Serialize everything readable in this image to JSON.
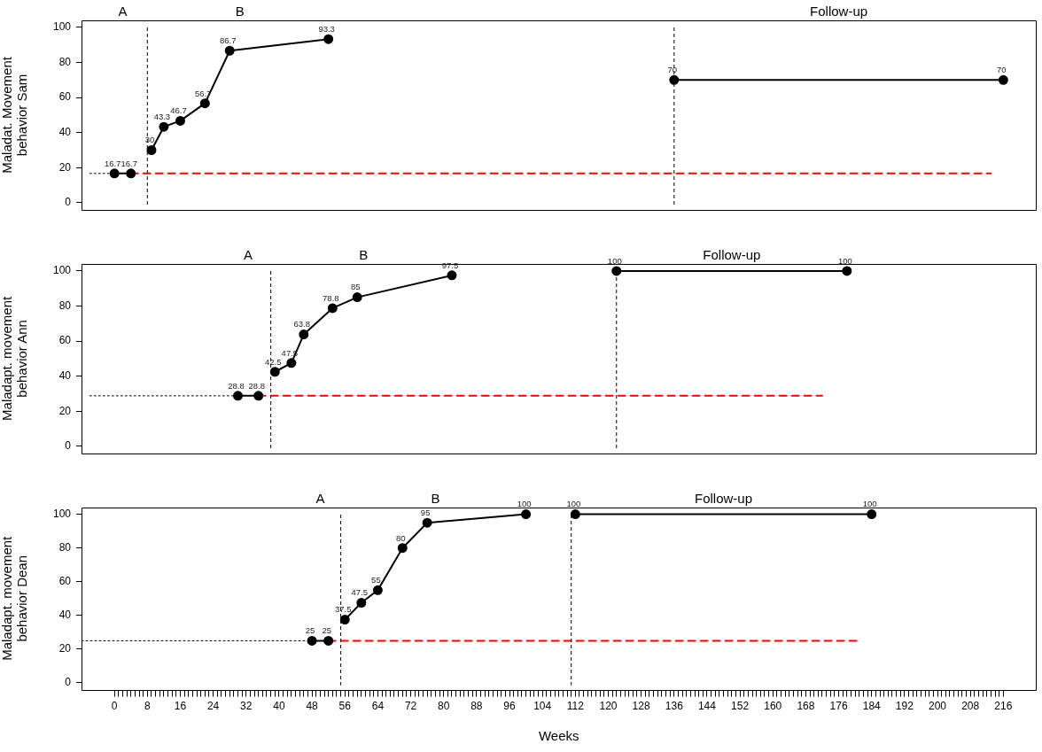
{
  "chart_data": [
    {
      "type": "line",
      "ylabel": "Maladat. Movement\nbehavior Sam",
      "xlim": [
        -8,
        224
      ],
      "ylim": [
        -4,
        104
      ],
      "yticks": [
        0,
        20,
        40,
        60,
        80,
        100
      ],
      "tick_labels": "y",
      "series": [
        {
          "x": [
            0,
            4
          ],
          "values": [
            16.7,
            16.7
          ],
          "color": "#000000",
          "marker": "circle",
          "line_style": "solid",
          "data_labels": true
        },
        {
          "x": [
            9,
            12,
            16,
            22,
            28,
            52
          ],
          "values": [
            30,
            43.3,
            46.7,
            56.7,
            86.7,
            93.3
          ],
          "color": "#000000",
          "marker": "circle",
          "line_style": "solid",
          "data_labels": true
        },
        {
          "x": [
            136,
            216
          ],
          "values": [
            70,
            70
          ],
          "color": "#000000",
          "marker": "circle",
          "line_style": "solid",
          "data_labels": true
        },
        {
          "x": [
            -6,
            0
          ],
          "values": [
            16.7,
            16.7
          ],
          "color": "#000000",
          "marker": "none",
          "line_style": "dotted"
        },
        {
          "x": [
            4,
            213
          ],
          "values": [
            16.7,
            16.7
          ],
          "color": "#ff0000",
          "marker": "none",
          "line_style": "dashed"
        }
      ],
      "ref_lines": [
        {
          "axis": "x",
          "value": 8,
          "color": "#000000",
          "line_style": "dashed"
        },
        {
          "axis": "x",
          "value": 136,
          "color": "#000000",
          "line_style": "dashed"
        }
      ],
      "annotations": [
        "A",
        "B",
        "Follow-up"
      ]
    },
    {
      "type": "line",
      "ylabel": "Maladapt. movement\nbehavior Ann",
      "xlim": [
        -8,
        224
      ],
      "ylim": [
        -4,
        104
      ],
      "yticks": [
        0,
        20,
        40,
        60,
        80,
        100
      ],
      "tick_labels": "y",
      "series": [
        {
          "x": [
            30,
            35
          ],
          "values": [
            28.8,
            28.8
          ],
          "color": "#000000",
          "marker": "circle",
          "line_style": "solid",
          "data_labels": true
        },
        {
          "x": [
            39,
            43,
            46,
            53,
            59,
            82
          ],
          "values": [
            42.5,
            47.5,
            63.8,
            78.8,
            85,
            97.5
          ],
          "color": "#000000",
          "marker": "circle",
          "line_style": "solid",
          "data_labels": true
        },
        {
          "x": [
            122,
            178
          ],
          "values": [
            100,
            100
          ],
          "color": "#000000",
          "marker": "circle",
          "line_style": "solid",
          "data_labels": true
        },
        {
          "x": [
            -6,
            30
          ],
          "values": [
            28.8,
            28.8
          ],
          "color": "#000000",
          "marker": "none",
          "line_style": "dotted"
        },
        {
          "x": [
            35,
            172
          ],
          "values": [
            28.8,
            28.8
          ],
          "color": "#ff0000",
          "marker": "none",
          "line_style": "dashed"
        }
      ],
      "ref_lines": [
        {
          "axis": "x",
          "value": 38,
          "color": "#000000",
          "line_style": "dashed"
        },
        {
          "axis": "x",
          "value": 122,
          "color": "#000000",
          "line_style": "dashed"
        }
      ],
      "annotations": [
        "A",
        "B",
        "Follow-up"
      ]
    },
    {
      "type": "line",
      "ylabel": "Maladapt. movement\nbehavior Dean",
      "xlabel": "Weeks",
      "xlim": [
        -8,
        224
      ],
      "ylim": [
        -4,
        104
      ],
      "yticks": [
        0,
        20,
        40,
        60,
        80,
        100
      ],
      "xticks": [
        0,
        {
          "value": 1,
          "label": null
        },
        {
          "value": 2,
          "label": null
        },
        {
          "value": 3,
          "label": null
        },
        {
          "value": 4,
          "label": null
        },
        {
          "value": 5,
          "label": null
        },
        {
          "value": 6,
          "label": null
        },
        {
          "value": 7,
          "label": null
        },
        8,
        {
          "value": 9,
          "label": null
        },
        {
          "value": 10,
          "label": null
        },
        {
          "value": 11,
          "label": null
        },
        {
          "value": 12,
          "label": null
        },
        {
          "value": 13,
          "label": null
        },
        {
          "value": 14,
          "label": null
        },
        {
          "value": 15,
          "label": null
        },
        16,
        {
          "value": 17,
          "label": null
        },
        {
          "value": 18,
          "label": null
        },
        {
          "value": 19,
          "label": null
        },
        {
          "value": 20,
          "label": null
        },
        {
          "value": 21,
          "label": null
        },
        {
          "value": 22,
          "label": null
        },
        {
          "value": 23,
          "label": null
        },
        24,
        {
          "value": 25,
          "label": null
        },
        {
          "value": 26,
          "label": null
        },
        {
          "value": 27,
          "label": null
        },
        {
          "value": 28,
          "label": null
        },
        {
          "value": 29,
          "label": null
        },
        {
          "value": 30,
          "label": null
        },
        {
          "value": 31,
          "label": null
        },
        32,
        {
          "value": 33,
          "label": null
        },
        {
          "value": 34,
          "label": null
        },
        {
          "value": 35,
          "label": null
        },
        {
          "value": 36,
          "label": null
        },
        {
          "value": 37,
          "label": null
        },
        {
          "value": 38,
          "label": null
        },
        {
          "value": 39,
          "label": null
        },
        40,
        {
          "value": 41,
          "label": null
        },
        {
          "value": 42,
          "label": null
        },
        {
          "value": 43,
          "label": null
        },
        {
          "value": 44,
          "label": null
        },
        {
          "value": 45,
          "label": null
        },
        {
          "value": 46,
          "label": null
        },
        {
          "value": 47,
          "label": null
        },
        48,
        {
          "value": 49,
          "label": null
        },
        {
          "value": 50,
          "label": null
        },
        {
          "value": 51,
          "label": null
        },
        {
          "value": 52,
          "label": null
        },
        {
          "value": 53,
          "label": null
        },
        {
          "value": 54,
          "label": null
        },
        {
          "value": 55,
          "label": null
        },
        56,
        {
          "value": 57,
          "label": null
        },
        {
          "value": 58,
          "label": null
        },
        {
          "value": 59,
          "label": null
        },
        {
          "value": 60,
          "label": null
        },
        {
          "value": 61,
          "label": null
        },
        {
          "value": 62,
          "label": null
        },
        {
          "value": 63,
          "label": null
        },
        64,
        {
          "value": 65,
          "label": null
        },
        {
          "value": 66,
          "label": null
        },
        {
          "value": 67,
          "label": null
        },
        {
          "value": 68,
          "label": null
        },
        {
          "value": 69,
          "label": null
        },
        {
          "value": 70,
          "label": null
        },
        {
          "value": 71,
          "label": null
        },
        72,
        {
          "value": 73,
          "label": null
        },
        {
          "value": 74,
          "label": null
        },
        {
          "value": 75,
          "label": null
        },
        {
          "value": 76,
          "label": null
        },
        {
          "value": 77,
          "label": null
        },
        {
          "value": 78,
          "label": null
        },
        {
          "value": 79,
          "label": null
        },
        80,
        {
          "value": 81,
          "label": null
        },
        {
          "value": 82,
          "label": null
        },
        {
          "value": 83,
          "label": null
        },
        {
          "value": 84,
          "label": null
        },
        {
          "value": 85,
          "label": null
        },
        {
          "value": 86,
          "label": null
        },
        {
          "value": 87,
          "label": null
        },
        88,
        {
          "value": 89,
          "label": null
        },
        {
          "value": 90,
          "label": null
        },
        {
          "value": 91,
          "label": null
        },
        {
          "value": 92,
          "label": null
        },
        {
          "value": 93,
          "label": null
        },
        {
          "value": 94,
          "label": null
        },
        {
          "value": 95,
          "label": null
        },
        96,
        {
          "value": 97,
          "label": null
        },
        {
          "value": 98,
          "label": null
        },
        {
          "value": 99,
          "label": null
        },
        {
          "value": 100,
          "label": null
        },
        {
          "value": 101,
          "label": null
        },
        {
          "value": 102,
          "label": null
        },
        {
          "value": 103,
          "label": null
        },
        104,
        {
          "value": 105,
          "label": null
        },
        {
          "value": 106,
          "label": null
        },
        {
          "value": 107,
          "label": null
        },
        {
          "value": 108,
          "label": null
        },
        {
          "value": 109,
          "label": null
        },
        {
          "value": 110,
          "label": null
        },
        {
          "value": 111,
          "label": null
        },
        112,
        {
          "value": 113,
          "label": null
        },
        {
          "value": 114,
          "label": null
        },
        {
          "value": 115,
          "label": null
        },
        {
          "value": 116,
          "label": null
        },
        {
          "value": 117,
          "label": null
        },
        {
          "value": 118,
          "label": null
        },
        {
          "value": 119,
          "label": null
        },
        120,
        {
          "value": 121,
          "label": null
        },
        {
          "value": 122,
          "label": null
        },
        {
          "value": 123,
          "label": null
        },
        {
          "value": 124,
          "label": null
        },
        {
          "value": 125,
          "label": null
        },
        {
          "value": 126,
          "label": null
        },
        {
          "value": 127,
          "label": null
        },
        128,
        {
          "value": 129,
          "label": null
        },
        {
          "value": 130,
          "label": null
        },
        {
          "value": 131,
          "label": null
        },
        {
          "value": 132,
          "label": null
        },
        {
          "value": 133,
          "label": null
        },
        {
          "value": 134,
          "label": null
        },
        {
          "value": 135,
          "label": null
        },
        136,
        {
          "value": 137,
          "label": null
        },
        {
          "value": 138,
          "label": null
        },
        {
          "value": 139,
          "label": null
        },
        {
          "value": 140,
          "label": null
        },
        {
          "value": 141,
          "label": null
        },
        {
          "value": 142,
          "label": null
        },
        {
          "value": 143,
          "label": null
        },
        144,
        {
          "value": 145,
          "label": null
        },
        {
          "value": 146,
          "label": null
        },
        {
          "value": 147,
          "label": null
        },
        {
          "value": 148,
          "label": null
        },
        {
          "value": 149,
          "label": null
        },
        {
          "value": 150,
          "label": null
        },
        {
          "value": 151,
          "label": null
        },
        152,
        {
          "value": 153,
          "label": null
        },
        {
          "value": 154,
          "label": null
        },
        {
          "value": 155,
          "label": null
        },
        {
          "value": 156,
          "label": null
        },
        {
          "value": 157,
          "label": null
        },
        {
          "value": 158,
          "label": null
        },
        {
          "value": 159,
          "label": null
        },
        160,
        {
          "value": 161,
          "label": null
        },
        {
          "value": 162,
          "label": null
        },
        {
          "value": 163,
          "label": null
        },
        {
          "value": 164,
          "label": null
        },
        {
          "value": 165,
          "label": null
        },
        {
          "value": 166,
          "label": null
        },
        {
          "value": 167,
          "label": null
        },
        168,
        {
          "value": 169,
          "label": null
        },
        {
          "value": 170,
          "label": null
        },
        {
          "value": 171,
          "label": null
        },
        {
          "value": 172,
          "label": null
        },
        {
          "value": 173,
          "label": null
        },
        {
          "value": 174,
          "label": null
        },
        {
          "value": 175,
          "label": null
        },
        176,
        {
          "value": 177,
          "label": null
        },
        {
          "value": 178,
          "label": null
        },
        {
          "value": 179,
          "label": null
        },
        {
          "value": 180,
          "label": null
        },
        {
          "value": 181,
          "label": null
        },
        {
          "value": 182,
          "label": null
        },
        {
          "value": 183,
          "label": null
        },
        184,
        {
          "value": 185,
          "label": null
        },
        {
          "value": 186,
          "label": null
        },
        {
          "value": 187,
          "label": null
        },
        {
          "value": 188,
          "label": null
        },
        {
          "value": 189,
          "label": null
        },
        {
          "value": 190,
          "label": null
        },
        {
          "value": 191,
          "label": null
        },
        192,
        {
          "value": 193,
          "label": null
        },
        {
          "value": 194,
          "label": null
        },
        {
          "value": 195,
          "label": null
        },
        {
          "value": 196,
          "label": null
        },
        {
          "value": 197,
          "label": null
        },
        {
          "value": 198,
          "label": null
        },
        {
          "value": 199,
          "label": null
        },
        200,
        {
          "value": 201,
          "label": null
        },
        {
          "value": 202,
          "label": null
        },
        {
          "value": 203,
          "label": null
        },
        {
          "value": 204,
          "label": null
        },
        {
          "value": 205,
          "label": null
        },
        {
          "value": 206,
          "label": null
        },
        {
          "value": 207,
          "label": null
        },
        208,
        {
          "value": 209,
          "label": null
        },
        {
          "value": 210,
          "label": null
        },
        {
          "value": 211,
          "label": null
        },
        {
          "value": 212,
          "label": null
        },
        {
          "value": 213,
          "label": null
        },
        {
          "value": 214,
          "label": null
        },
        {
          "value": 215,
          "label": null
        },
        216
      ],
      "series": [
        {
          "x": [
            48,
            52
          ],
          "values": [
            25,
            25
          ],
          "color": "#000000",
          "marker": "circle",
          "line_style": "solid",
          "data_labels": true
        },
        {
          "x": [
            56,
            60,
            64,
            70,
            76,
            100
          ],
          "values": [
            37.5,
            47.5,
            55,
            80,
            95,
            100
          ],
          "color": "#000000",
          "marker": "circle",
          "line_style": "solid",
          "data_labels": true
        },
        {
          "x": [
            112,
            184
          ],
          "values": [
            100,
            100
          ],
          "color": "#000000",
          "marker": "circle",
          "line_style": "solid",
          "data_labels": true
        },
        {
          "x": [
            -8,
            48
          ],
          "values": [
            25,
            25
          ],
          "color": "#000000",
          "marker": "none",
          "line_style": "dotted"
        },
        {
          "x": [
            52,
            181
          ],
          "values": [
            25,
            25
          ],
          "color": "#ff0000",
          "marker": "none",
          "line_style": "dashed"
        }
      ],
      "ref_lines": [
        {
          "axis": "x",
          "value": 55,
          "color": "#000000",
          "line_style": "dashed"
        },
        {
          "axis": "x",
          "value": 111,
          "color": "#000000",
          "line_style": "dashed"
        }
      ],
      "annotations": [
        "A",
        "B",
        "Follow-up"
      ]
    }
  ]
}
